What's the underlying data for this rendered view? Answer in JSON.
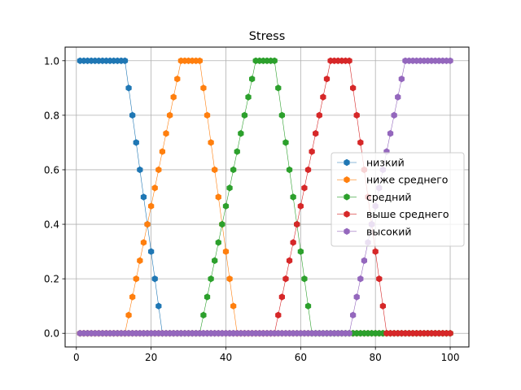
{
  "chart_data": {
    "type": "line",
    "title": "Stress",
    "xlabel": "",
    "ylabel": "",
    "xlim": [
      -3,
      105
    ],
    "ylim": [
      -0.05,
      1.05
    ],
    "xticks": [
      0,
      20,
      40,
      60,
      80,
      100
    ],
    "yticks": [
      0.0,
      0.2,
      0.4,
      0.6,
      0.8,
      1.0
    ],
    "xtick_labels": [
      "0",
      "20",
      "40",
      "60",
      "80",
      "100"
    ],
    "ytick_labels": [
      "0.0",
      "0.2",
      "0.4",
      "0.6",
      "0.8",
      "1.0"
    ],
    "grid": true,
    "legend_position": "center-right",
    "marker": "hexagon",
    "x": [
      1,
      2,
      3,
      4,
      5,
      6,
      7,
      8,
      9,
      10,
      11,
      12,
      13,
      14,
      15,
      16,
      17,
      18,
      19,
      20,
      21,
      22,
      23,
      24,
      25,
      26,
      27,
      28,
      29,
      30,
      31,
      32,
      33,
      34,
      35,
      36,
      37,
      38,
      39,
      40,
      41,
      42,
      43,
      44,
      45,
      46,
      47,
      48,
      49,
      50,
      51,
      52,
      53,
      54,
      55,
      56,
      57,
      58,
      59,
      60,
      61,
      62,
      63,
      64,
      65,
      66,
      67,
      68,
      69,
      70,
      71,
      72,
      73,
      74,
      75,
      76,
      77,
      78,
      79,
      80,
      81,
      82,
      83,
      84,
      85,
      86,
      87,
      88,
      89,
      90,
      91,
      92,
      93,
      94,
      95,
      96,
      97,
      98,
      99,
      100
    ],
    "series": [
      {
        "name": "низкий",
        "color": "#1f77b4",
        "values": [
          1,
          1,
          1,
          1,
          1,
          1,
          1,
          1,
          1,
          1,
          1,
          1,
          1,
          0.9,
          0.8,
          0.7,
          0.6,
          0.5,
          0.4,
          0.3,
          0.2,
          0.1,
          0,
          0,
          0,
          0,
          0,
          0,
          0,
          0,
          0,
          0,
          0,
          0,
          0,
          0,
          0,
          0,
          0,
          0,
          0,
          0,
          0,
          0,
          0,
          0,
          0,
          0,
          0,
          0,
          0,
          0,
          0,
          0,
          0,
          0,
          0,
          0,
          0,
          0,
          0,
          0,
          0,
          0,
          0,
          0,
          0,
          0,
          0,
          0,
          0,
          0,
          0,
          0,
          0,
          0,
          0,
          0,
          0,
          0,
          0,
          0,
          0,
          0,
          0,
          0,
          0,
          0,
          0,
          0,
          0,
          0,
          0,
          0,
          0,
          0,
          0,
          0,
          0,
          0
        ]
      },
      {
        "name": "ниже среднего",
        "color": "#ff7f0e",
        "values": [
          0,
          0,
          0,
          0,
          0,
          0,
          0,
          0,
          0,
          0,
          0,
          0,
          0,
          0.0667,
          0.1333,
          0.2,
          0.2667,
          0.3333,
          0.4,
          0.4667,
          0.5333,
          0.6,
          0.6667,
          0.7333,
          0.8,
          0.8667,
          0.9333,
          1,
          1,
          1,
          1,
          1,
          1,
          0.9,
          0.8,
          0.7,
          0.6,
          0.5,
          0.4,
          0.3,
          0.2,
          0.1,
          0,
          0,
          0,
          0,
          0,
          0,
          0,
          0,
          0,
          0,
          0,
          0,
          0,
          0,
          0,
          0,
          0,
          0,
          0,
          0,
          0,
          0,
          0,
          0,
          0,
          0,
          0,
          0,
          0,
          0,
          0,
          0,
          0,
          0,
          0,
          0,
          0,
          0,
          0,
          0,
          0,
          0,
          0,
          0,
          0,
          0,
          0,
          0,
          0,
          0,
          0,
          0,
          0,
          0,
          0,
          0,
          0,
          0
        ]
      },
      {
        "name": "средний",
        "color": "#2ca02c",
        "values": [
          0,
          0,
          0,
          0,
          0,
          0,
          0,
          0,
          0,
          0,
          0,
          0,
          0,
          0,
          0,
          0,
          0,
          0,
          0,
          0,
          0,
          0,
          0,
          0,
          0,
          0,
          0,
          0,
          0,
          0,
          0,
          0,
          0,
          0.0667,
          0.1333,
          0.2,
          0.2667,
          0.3333,
          0.4,
          0.4667,
          0.5333,
          0.6,
          0.6667,
          0.7333,
          0.8,
          0.8667,
          0.9333,
          1,
          1,
          1,
          1,
          1,
          1,
          0.9,
          0.8,
          0.7,
          0.6,
          0.5,
          0.4,
          0.3,
          0.2,
          0.1,
          0,
          0,
          0,
          0,
          0,
          0,
          0,
          0,
          0,
          0,
          0,
          0,
          0,
          0,
          0,
          0,
          0,
          0,
          0,
          0,
          0,
          0,
          0,
          0,
          0,
          0,
          0,
          0,
          0,
          0,
          0,
          0,
          0,
          0,
          0,
          0,
          0,
          0
        ]
      },
      {
        "name": "выше среднего",
        "color": "#d62728",
        "values": [
          0,
          0,
          0,
          0,
          0,
          0,
          0,
          0,
          0,
          0,
          0,
          0,
          0,
          0,
          0,
          0,
          0,
          0,
          0,
          0,
          0,
          0,
          0,
          0,
          0,
          0,
          0,
          0,
          0,
          0,
          0,
          0,
          0,
          0,
          0,
          0,
          0,
          0,
          0,
          0,
          0,
          0,
          0,
          0,
          0,
          0,
          0,
          0,
          0,
          0,
          0,
          0,
          0,
          0.0667,
          0.1333,
          0.2,
          0.2667,
          0.3333,
          0.4,
          0.4667,
          0.5333,
          0.6,
          0.6667,
          0.7333,
          0.8,
          0.8667,
          0.9333,
          1,
          1,
          1,
          1,
          1,
          1,
          0.9,
          0.8,
          0.7,
          0.6,
          0.5,
          0.4,
          0.3,
          0.2,
          0.1,
          0,
          0,
          0,
          0,
          0,
          0,
          0,
          0,
          0,
          0,
          0,
          0,
          0,
          0,
          0,
          0,
          0,
          0
        ]
      },
      {
        "name": "высокий",
        "color": "#9467bd",
        "values": [
          0,
          0,
          0,
          0,
          0,
          0,
          0,
          0,
          0,
          0,
          0,
          0,
          0,
          0,
          0,
          0,
          0,
          0,
          0,
          0,
          0,
          0,
          0,
          0,
          0,
          0,
          0,
          0,
          0,
          0,
          0,
          0,
          0,
          0,
          0,
          0,
          0,
          0,
          0,
          0,
          0,
          0,
          0,
          0,
          0,
          0,
          0,
          0,
          0,
          0,
          0,
          0,
          0,
          0,
          0,
          0,
          0,
          0,
          0,
          0,
          0,
          0,
          0,
          0,
          0,
          0,
          0,
          0,
          0,
          0,
          0,
          0,
          0,
          0.0667,
          0.1333,
          0.2,
          0.2667,
          0.3333,
          0.4,
          0.4667,
          0.5333,
          0.6,
          0.6667,
          0.7333,
          0.8,
          0.8667,
          0.9333,
          1,
          1,
          1,
          1,
          1,
          1,
          1,
          1,
          1,
          1,
          1,
          1,
          1
        ]
      }
    ]
  }
}
